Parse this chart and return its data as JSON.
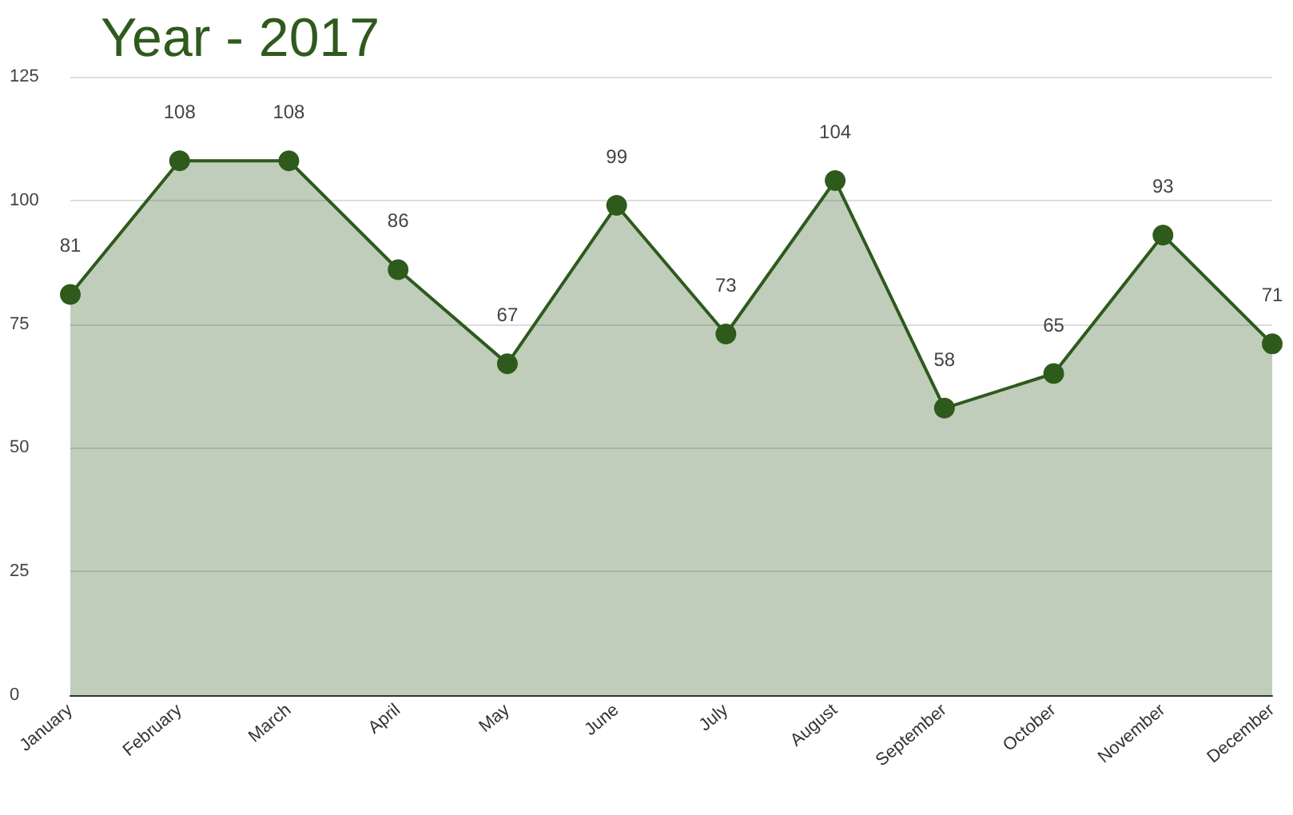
{
  "chart_data": {
    "type": "area",
    "title": "Year - 2017",
    "categories": [
      "January",
      "February",
      "March",
      "April",
      "May",
      "June",
      "July",
      "August",
      "September",
      "October",
      "November",
      "December"
    ],
    "series": [
      {
        "color": "#2e5a1c",
        "values": [
          81,
          108,
          108,
          86,
          67,
          99,
          73,
          104,
          58,
          65,
          93,
          71
        ]
      }
    ],
    "ylim": [
      0,
      125
    ],
    "yticks": [
      0,
      25,
      50,
      75,
      100,
      125
    ],
    "grid": "y",
    "marker": "circle",
    "line_style": "solid",
    "data_labels": true
  }
}
